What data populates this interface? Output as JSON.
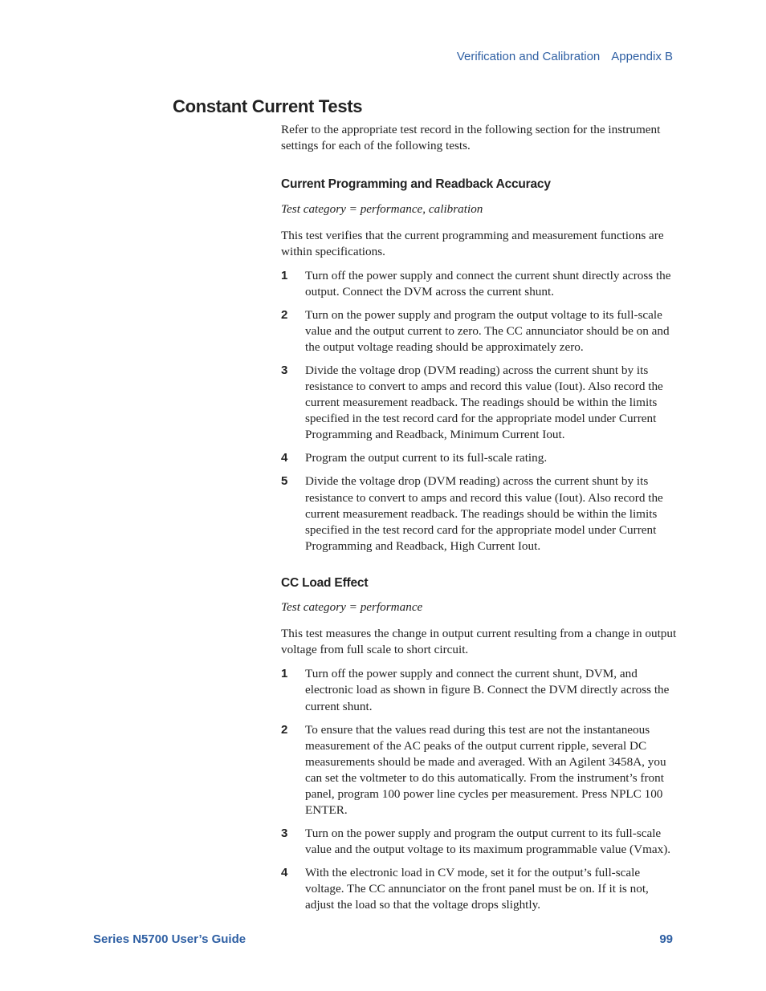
{
  "colors": {
    "accent": "#2e5fa3",
    "text": "#222222",
    "background": "#ffffff"
  },
  "header": {
    "section": "Verification and Calibration",
    "appendix": "Appendix B"
  },
  "title": "Constant Current Tests",
  "intro": "Refer to the appropriate test record in the following section for the instrument settings for each of the following tests.",
  "section1": {
    "heading": "Current Programming and Readback Accuracy",
    "category": "Test category = performance, calibration",
    "body": "This test verifies that the current programming and measurement functions are within specifications.",
    "steps": [
      "Turn off the power supply and connect the current shunt directly across the output. Connect the DVM across the current shunt.",
      "Turn on the power supply and program the output voltage to its full-scale value and the output current to zero. The CC annunciator should be on and the output voltage reading should be approximately zero.",
      "Divide the voltage drop (DVM reading) across the current shunt by its resistance to convert to amps and record this value (Iout). Also record the current measurement readback. The readings should be within the limits specified in the test record card for the appropriate model under Current Programming and Readback, Minimum Current Iout.",
      "Program the output current to its full-scale rating.",
      "Divide the voltage drop (DVM reading) across the current shunt by its resistance to convert to amps and record this value (Iout). Also record the current measurement readback. The readings should be within the limits specified in the test record card for the appropriate model under Current Programming and Readback, High Current Iout."
    ]
  },
  "section2": {
    "heading": "CC Load Effect",
    "category": "Test category = performance",
    "body": "This test measures the change in output current resulting from a change in output voltage from full scale to short circuit.",
    "steps": [
      "Turn off the power supply and connect the current shunt, DVM, and electronic load as shown in figure B. Connect the DVM directly across the current shunt.",
      "To ensure that the values read during this test are not the instantaneous measurement of the AC peaks of the output current ripple, several DC measurements should be made and averaged. With an Agilent 3458A, you can set the voltmeter to do this automatically. From the instrument’s front panel, program 100 power line cycles per measurement. Press NPLC 100 ENTER.",
      "Turn on the power supply and program the output current to its full-scale value and the output voltage to its maximum programmable value (Vmax).",
      "With the electronic load in CV mode, set it for the output’s full-scale voltage. The CC annunciator on the front panel must be on. If it is not, adjust the load so that the voltage drops slightly."
    ]
  },
  "footer": {
    "left": "Series N5700 User’s Guide",
    "page": "99"
  }
}
